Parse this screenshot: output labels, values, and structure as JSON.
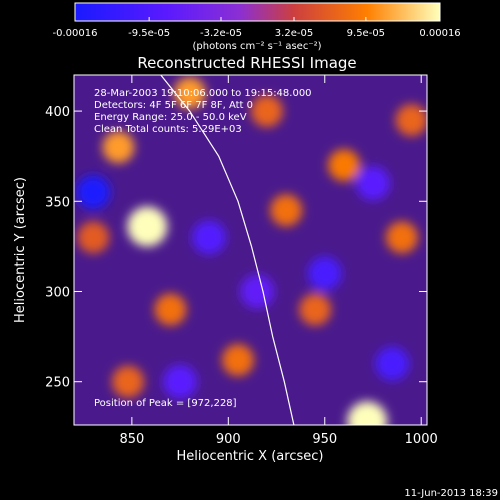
{
  "chart_data": {
    "type": "heatmap",
    "title": "Reconstructed RHESSI Image",
    "xlabel": "Heliocentric X (arcsec)",
    "ylabel": "Heliocentric Y (arcsec)",
    "xlim": [
      820,
      1003
    ],
    "ylim": [
      226,
      420
    ],
    "x_ticks": [
      "850",
      "900",
      "950",
      "1000"
    ],
    "x_tick_values": [
      850,
      900,
      950,
      1000
    ],
    "y_ticks": [
      "250",
      "300",
      "350",
      "400"
    ],
    "y_tick_values": [
      250,
      300,
      350,
      400
    ],
    "colorbar": {
      "tick_labels": [
        "-0.00016",
        "-9.5e-05",
        "-3.2e-05",
        "3.2e-05",
        "9.5e-05",
        "0.00016"
      ],
      "tick_values": [
        -0.00016,
        -9.5e-05,
        -3.2e-05,
        3.2e-05,
        9.5e-05,
        0.00016
      ],
      "range": [
        -0.00016,
        0.00016
      ],
      "units": "(photons cm⁻² s⁻¹ asec⁻²)",
      "colors": [
        "#1a1aff",
        "#5a1aff",
        "#8b2fd4",
        "#cc3f3f",
        "#ff7f00",
        "#ffffbb"
      ]
    },
    "annotations": [
      "28-Mar-2003 19:10:06.000 to 19:15:48.000",
      "Detectors: 4F 5F 6F 7F 8F, Att 0",
      "Energy Range: 25.0 - 50.0 keV",
      "Clean     Total counts: 5.29E+03"
    ],
    "peak_label": "Position of Peak = [972,228]",
    "peak": [
      972,
      228
    ],
    "limb": [
      [
        865,
        420
      ],
      [
        880,
        400
      ],
      [
        895,
        375
      ],
      [
        905,
        350
      ],
      [
        912,
        325
      ],
      [
        918,
        300
      ],
      [
        923,
        275
      ],
      [
        929,
        250
      ],
      [
        934,
        226
      ]
    ],
    "hotspots": [
      {
        "x": 880,
        "y": 410,
        "v": 0.00011
      },
      {
        "x": 858,
        "y": 336,
        "v": 0.00016
      },
      {
        "x": 843,
        "y": 380,
        "v": 0.00011
      },
      {
        "x": 960,
        "y": 370,
        "v": 9e-05
      },
      {
        "x": 990,
        "y": 330,
        "v": 8e-05
      },
      {
        "x": 930,
        "y": 345,
        "v": 8e-05
      },
      {
        "x": 972,
        "y": 228,
        "v": 0.00016
      },
      {
        "x": 905,
        "y": 262,
        "v": 8e-05
      },
      {
        "x": 870,
        "y": 290,
        "v": 8e-05
      },
      {
        "x": 848,
        "y": 250,
        "v": 7e-05
      },
      {
        "x": 945,
        "y": 290,
        "v": 7e-05
      },
      {
        "x": 995,
        "y": 395,
        "v": 7e-05
      },
      {
        "x": 920,
        "y": 400,
        "v": 7e-05
      },
      {
        "x": 830,
        "y": 330,
        "v": 6e-05
      }
    ],
    "coldspots": [
      {
        "x": 830,
        "y": 355,
        "v": -0.00016
      },
      {
        "x": 950,
        "y": 310,
        "v": -0.0001
      },
      {
        "x": 890,
        "y": 330,
        "v": -9e-05
      },
      {
        "x": 985,
        "y": 260,
        "v": -0.0001
      },
      {
        "x": 875,
        "y": 250,
        "v": -8e-05
      },
      {
        "x": 975,
        "y": 360,
        "v": -8e-05
      },
      {
        "x": 915,
        "y": 300,
        "v": -7e-05
      }
    ]
  },
  "footer": {
    "date_stamp": "11-Jun-2013 18:39"
  }
}
